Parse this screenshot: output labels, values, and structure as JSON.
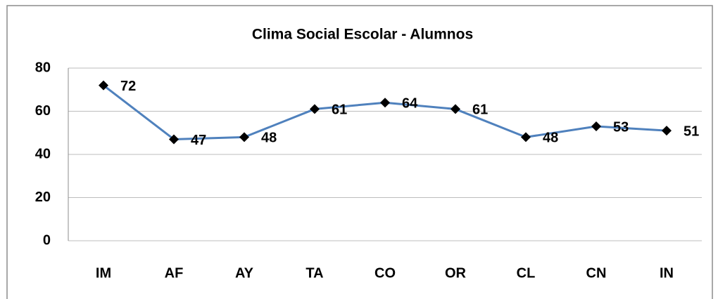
{
  "chart_data": {
    "type": "line",
    "title": "Clima Social Escolar - Alumnos",
    "categories": [
      "IM",
      "AF",
      "AY",
      "TA",
      "CO",
      "OR",
      "CL",
      "CN",
      "IN"
    ],
    "series": [
      {
        "name": "Alumnos",
        "color": "#4f81bd",
        "values": [
          72,
          47,
          48,
          61,
          64,
          61,
          48,
          53,
          51
        ]
      }
    ],
    "ylim": [
      0,
      80
    ],
    "yticks": [
      0,
      20,
      40,
      60,
      80
    ],
    "grid": true
  }
}
